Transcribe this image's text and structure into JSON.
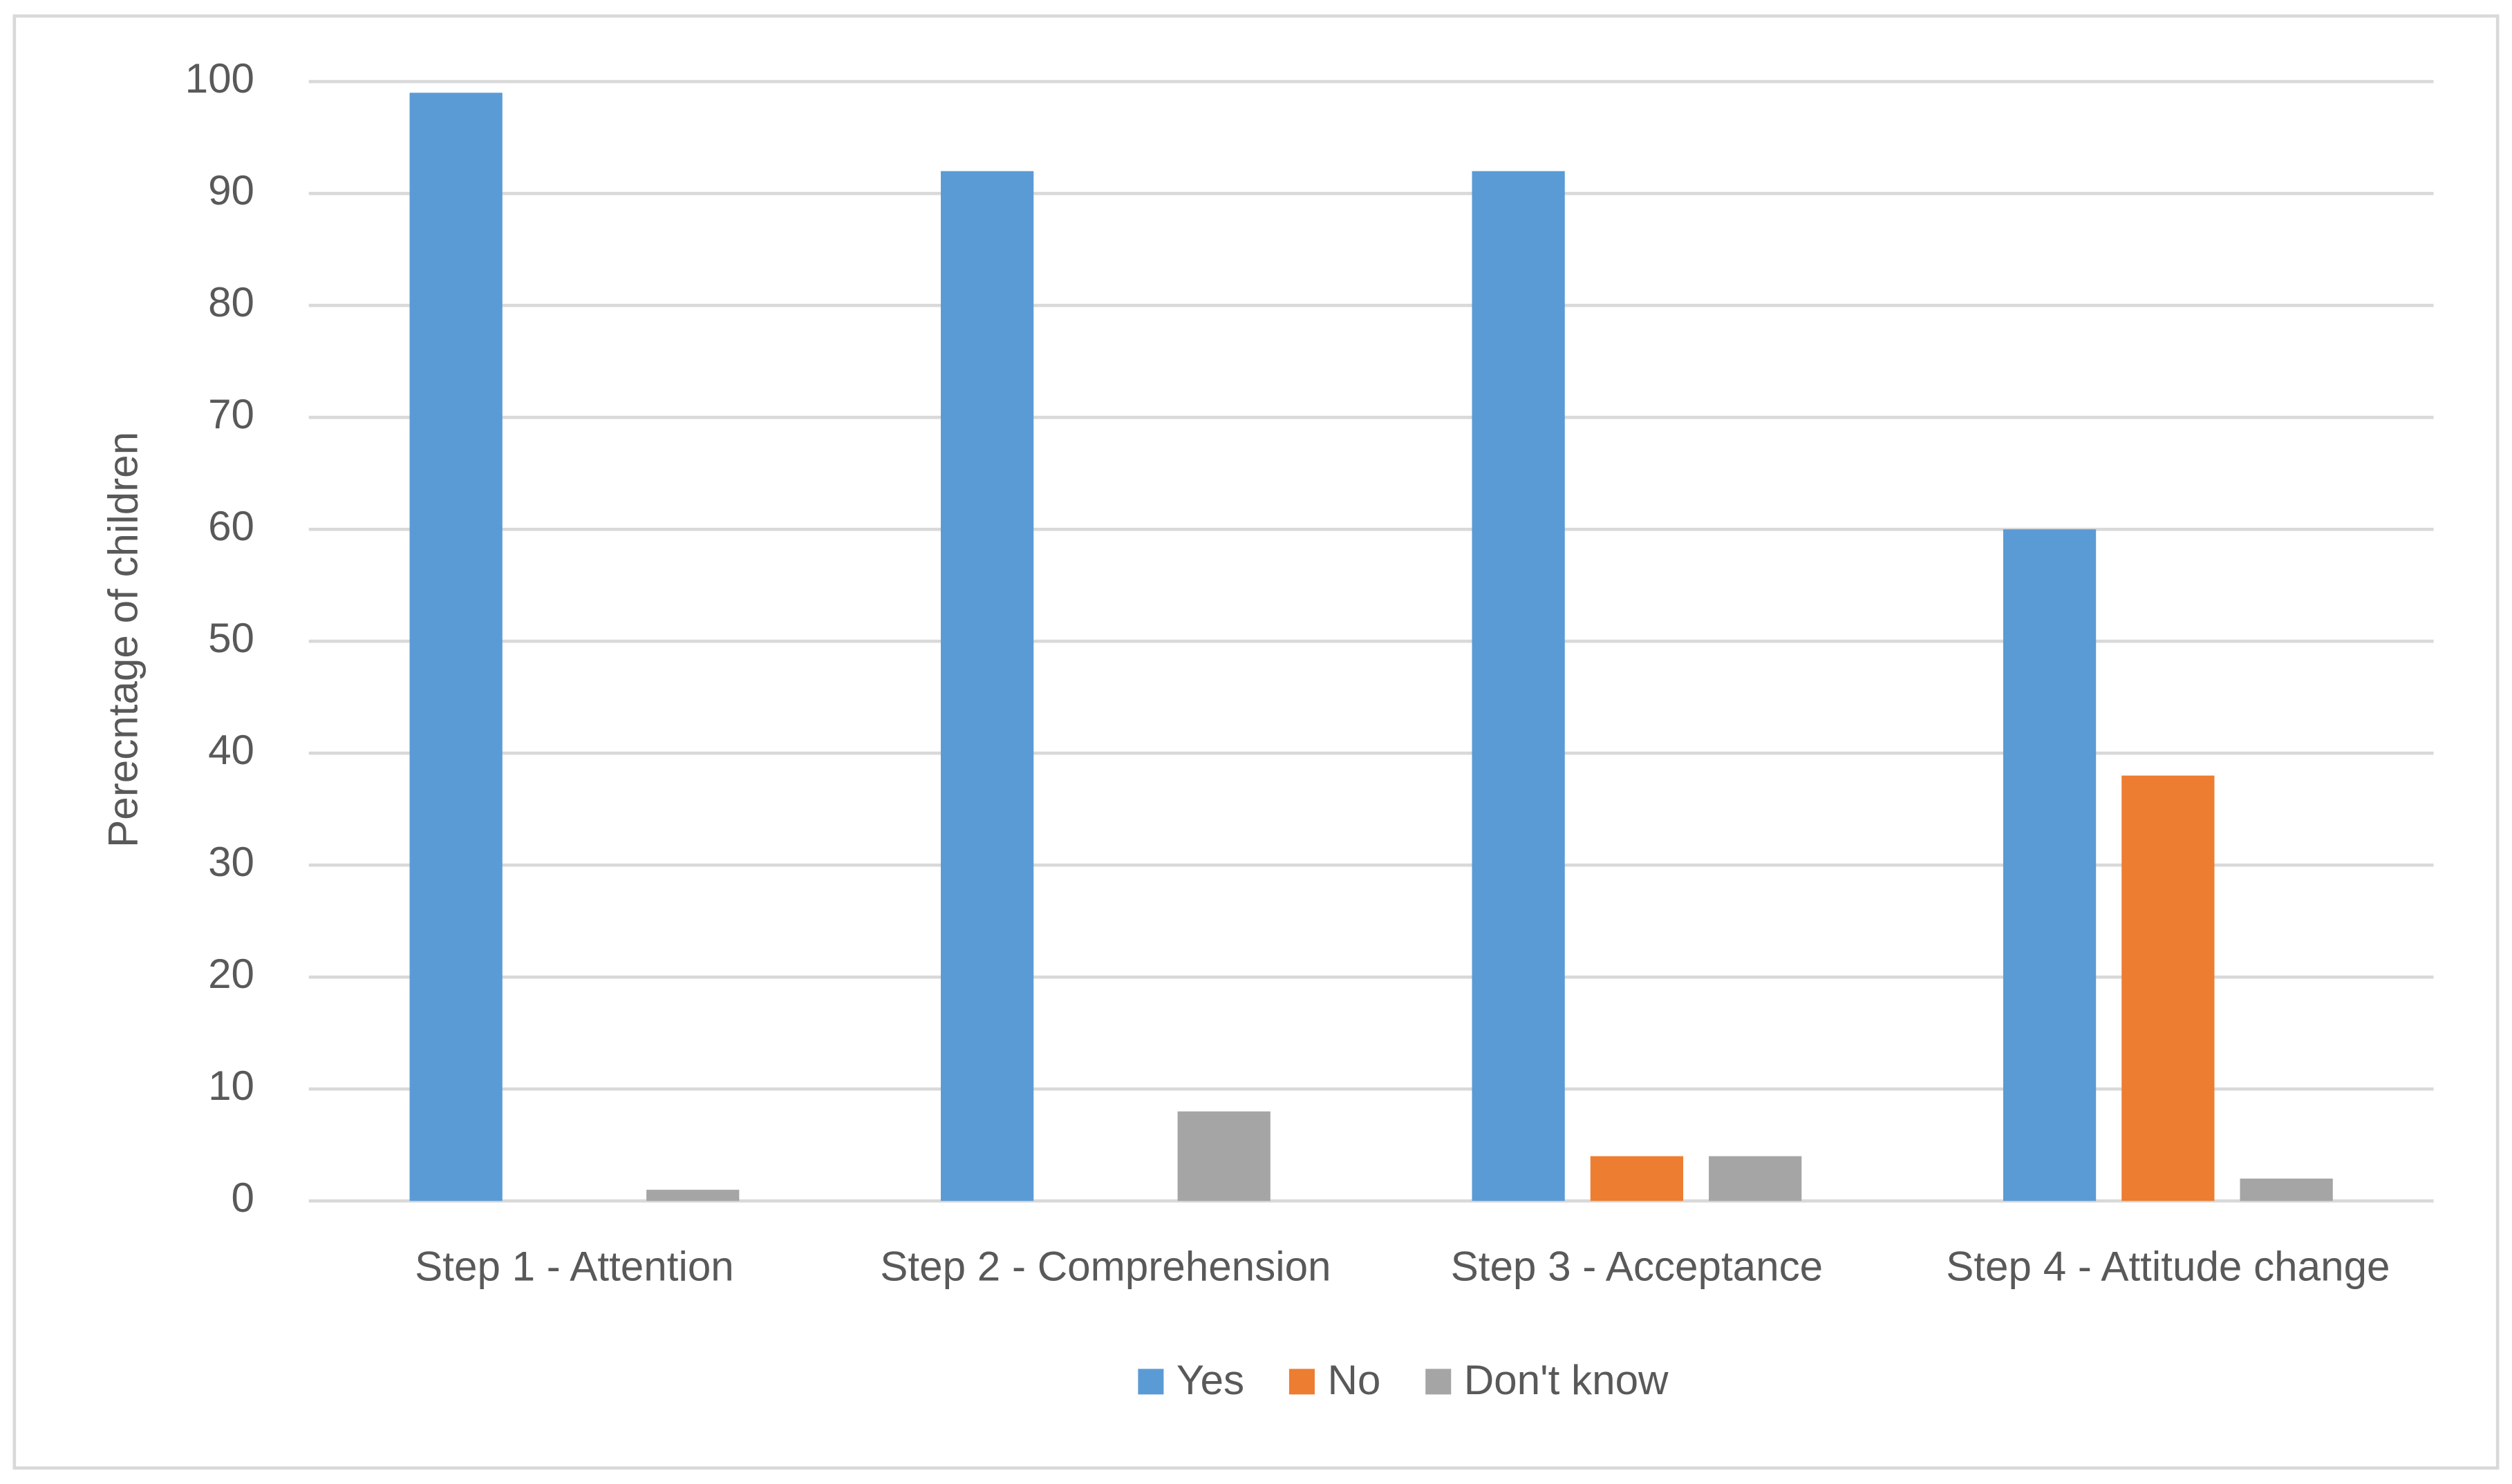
{
  "chart_data": {
    "type": "bar",
    "y_label": "Perecntage of children",
    "categories": [
      "Step 1 - Attention",
      "Step 2 - Comprehension",
      "Step 3 - Acceptance",
      "Step 4 - Attitude change"
    ],
    "series": [
      {
        "name": "Yes",
        "color": "#5b9bd5",
        "values": [
          99,
          92,
          92,
          60
        ]
      },
      {
        "name": "No",
        "color": "#ed7d31",
        "values": [
          0,
          0,
          4,
          38
        ]
      },
      {
        "name": "Don't know",
        "color": "#a5a5a5",
        "values": [
          1,
          8,
          4,
          2
        ]
      }
    ],
    "ylim": [
      0,
      100
    ],
    "yticks": [
      0,
      10,
      20,
      30,
      40,
      50,
      60,
      70,
      80,
      90,
      100
    ],
    "grid": true,
    "legend": "bottom"
  }
}
